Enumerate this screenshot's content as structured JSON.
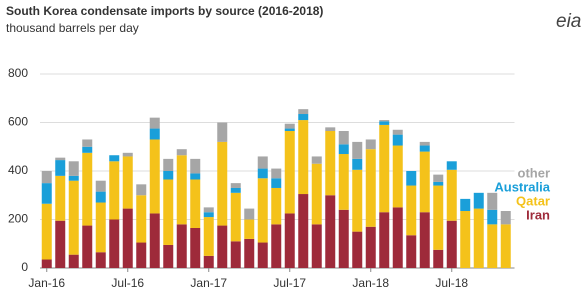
{
  "chart_data": {
    "type": "stacked_bar",
    "title": "South Korea condensate imports by source (2016-2018)",
    "subtitle": "thousand barrels per day",
    "logo": "eia",
    "categories": [
      "Jan-16",
      null,
      null,
      null,
      null,
      null,
      "Jul-16",
      null,
      null,
      null,
      null,
      null,
      "Jan-17",
      null,
      null,
      null,
      null,
      null,
      "Jul-17",
      null,
      null,
      null,
      null,
      null,
      "Jan-18",
      null,
      null,
      null,
      null,
      null,
      "Jul-18",
      null,
      null,
      null,
      null
    ],
    "series": [
      {
        "name": "Iran",
        "color": "#9e2a3a",
        "values": [
          35,
          195,
          55,
          175,
          65,
          200,
          245,
          105,
          225,
          95,
          180,
          165,
          50,
          175,
          110,
          120,
          105,
          180,
          225,
          305,
          180,
          300,
          240,
          150,
          170,
          230,
          250,
          135,
          230,
          75,
          195,
          0,
          0,
          0,
          0
        ]
      },
      {
        "name": "Qatar",
        "color": "#f4c21a",
        "values": [
          230,
          185,
          305,
          300,
          205,
          240,
          215,
          195,
          305,
          270,
          285,
          200,
          160,
          345,
          200,
          80,
          265,
          150,
          340,
          305,
          250,
          265,
          230,
          255,
          320,
          360,
          255,
          205,
          250,
          265,
          210,
          235,
          245,
          180,
          180
        ]
      },
      {
        "name": "Australia",
        "color": "#1a9fd9",
        "values": [
          85,
          65,
          20,
          25,
          45,
          25,
          0,
          0,
          45,
          35,
          0,
          25,
          20,
          0,
          20,
          0,
          40,
          40,
          10,
          25,
          0,
          0,
          40,
          45,
          0,
          15,
          45,
          60,
          25,
          15,
          35,
          50,
          65,
          60,
          0
        ]
      },
      {
        "name": "other",
        "color": "#a6a6a6",
        "values": [
          50,
          10,
          60,
          30,
          45,
          0,
          15,
          45,
          45,
          50,
          25,
          60,
          20,
          80,
          20,
          45,
          50,
          40,
          20,
          20,
          30,
          15,
          55,
          70,
          40,
          5,
          20,
          0,
          15,
          30,
          0,
          0,
          0,
          70,
          55
        ]
      }
    ],
    "ylim": [
      0,
      800
    ],
    "yticks": [
      0,
      200,
      400,
      600,
      800
    ],
    "grid": true,
    "legend_position": "right"
  }
}
